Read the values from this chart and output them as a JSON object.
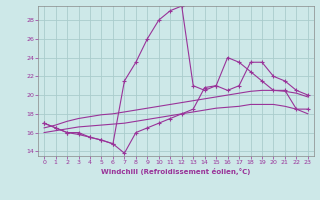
{
  "xlabel": "Windchill (Refroidissement éolien,°C)",
  "background_color": "#cde8e8",
  "grid_color": "#b0d8d8",
  "line_color": "#993399",
  "x": [
    0,
    1,
    2,
    3,
    4,
    5,
    6,
    7,
    8,
    9,
    10,
    11,
    12,
    13,
    14,
    15,
    16,
    17,
    18,
    19,
    20,
    21,
    22,
    23
  ],
  "line_spiky": [
    17.0,
    16.5,
    16.0,
    15.8,
    15.5,
    15.2,
    14.8,
    21.5,
    23.5,
    26.0,
    28.0,
    29.0,
    29.5,
    21.0,
    20.5,
    21.0,
    24.0,
    23.5,
    22.5,
    21.5,
    20.5,
    20.5,
    18.5,
    18.5
  ],
  "line_bumpy": [
    17.0,
    16.5,
    16.0,
    16.0,
    15.5,
    15.2,
    14.8,
    13.8,
    16.0,
    16.5,
    17.0,
    17.5,
    18.0,
    18.5,
    20.8,
    21.0,
    20.5,
    21.0,
    23.5,
    23.5,
    22.0,
    21.5,
    20.5,
    20.0
  ],
  "line_smooth1": [
    16.5,
    16.8,
    17.2,
    17.5,
    17.7,
    17.9,
    18.0,
    18.2,
    18.4,
    18.6,
    18.8,
    19.0,
    19.2,
    19.4,
    19.6,
    19.8,
    20.0,
    20.2,
    20.4,
    20.5,
    20.5,
    20.4,
    20.2,
    19.8
  ],
  "line_smooth2": [
    16.0,
    16.2,
    16.4,
    16.6,
    16.7,
    16.8,
    16.9,
    17.0,
    17.2,
    17.4,
    17.6,
    17.8,
    18.0,
    18.2,
    18.4,
    18.6,
    18.7,
    18.8,
    19.0,
    19.0,
    19.0,
    18.8,
    18.5,
    18.0
  ],
  "ylim": [
    13.5,
    29.5
  ],
  "yticks": [
    14,
    16,
    18,
    20,
    22,
    24,
    26,
    28
  ],
  "xlim": [
    -0.5,
    23.5
  ],
  "xticks": [
    0,
    1,
    2,
    3,
    4,
    5,
    6,
    7,
    8,
    9,
    10,
    11,
    12,
    13,
    14,
    15,
    16,
    17,
    18,
    19,
    20,
    21,
    22,
    23
  ]
}
